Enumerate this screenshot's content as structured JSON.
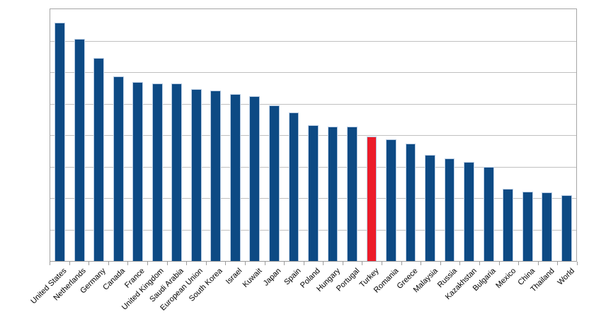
{
  "chart_data": {
    "type": "bar",
    "title": "",
    "categories": [
      "United States",
      "Netherlands",
      "Germany",
      "Canada",
      "France",
      "United Kingdom",
      "Saudi Arabia",
      "European Union",
      "South Korea",
      "Israel",
      "Kuwait",
      "Japan",
      "Spain",
      "Poland",
      "Hungary",
      "Portugal",
      "Turkey",
      "Romania",
      "Greece",
      "Malaysia",
      "Russia",
      "Kazakhstan",
      "Bulgaria",
      "Mexico",
      "China",
      "Thailand",
      "World"
    ],
    "series": [
      {
        "name": "",
        "values": [
          7.58,
          7.06,
          6.46,
          5.86,
          5.68,
          5.65,
          5.64,
          5.47,
          5.42,
          5.3,
          5.23,
          4.95,
          4.73,
          4.31,
          4.28,
          4.26,
          3.95,
          3.87,
          3.73,
          3.38,
          3.26,
          3.14,
          2.98,
          2.29,
          2.2,
          2.18,
          2.09
        ]
      }
    ],
    "highlight": {
      "category": "Turkey",
      "color": "#ec1c29"
    },
    "bar_color": "#0d4a84",
    "bar_border_color": "#b9cde4",
    "xlabel": "",
    "ylabel": "",
    "ylim": [
      0,
      8
    ],
    "y_gridline_step": 1,
    "y_tick_labels_visible": false,
    "x_tick_label_rotation_deg": 45,
    "grid": true,
    "gridline_color": "#c0c0c0",
    "axis_color": "#a6a6a6",
    "legend_position": "none",
    "background_color": "#ffffff"
  }
}
